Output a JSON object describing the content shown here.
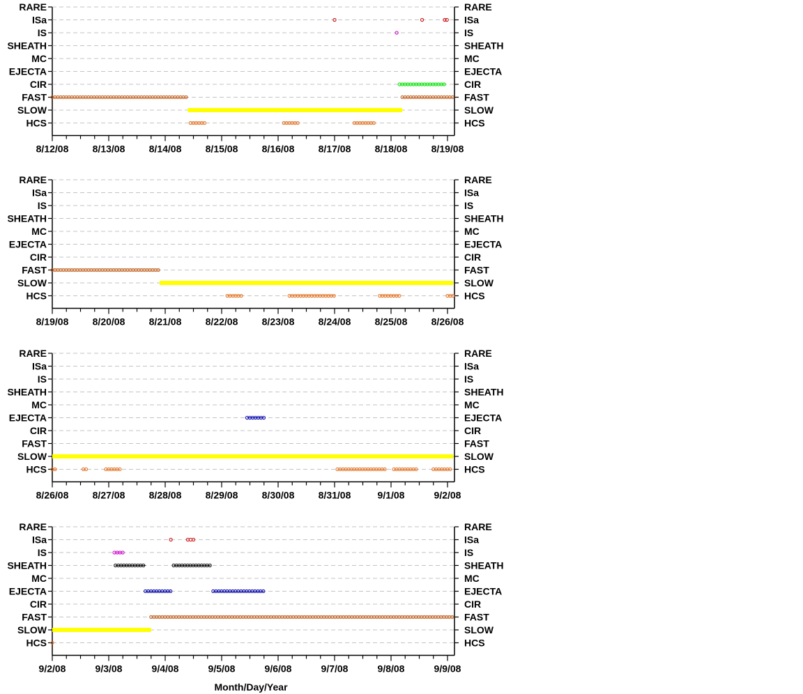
{
  "colors": {
    "gridline": "#b0b0b0",
    "axis": "#000000",
    "slow_fill": "#ffff00",
    "HCS": "#e07020",
    "FAST": "#c06020",
    "CIR": "#00e000",
    "IS": "#cc00cc",
    "ISa": "#cc0000",
    "EJECTA": "#0000aa",
    "SHEATH": "#000000"
  },
  "xlabel": "Month/Day/Year",
  "chart_data": [
    {
      "type": "scatter",
      "categories": [
        "RARE",
        "ISa",
        "IS",
        "SHEATH",
        "MC",
        "EJECTA",
        "CIR",
        "FAST",
        "SLOW",
        "HCS"
      ],
      "x_tick_labels": [
        "8/12/08",
        "8/13/08",
        "8/14/08",
        "8/15/08",
        "8/16/08",
        "8/17/08",
        "8/18/08",
        "8/19/08"
      ],
      "xlim": [
        0,
        7.1
      ],
      "grid": true,
      "series": [
        {
          "category": "ISa",
          "points": [
            5.0,
            6.55,
            6.95,
            6.99
          ]
        },
        {
          "category": "IS",
          "points": [
            6.1
          ]
        },
        {
          "category": "CIR",
          "ranges": [
            [
              6.15,
              6.95
            ]
          ]
        },
        {
          "category": "FAST",
          "ranges": [
            [
              0.0,
              2.4
            ],
            [
              6.2,
              7.1
            ]
          ]
        },
        {
          "category": "SLOW",
          "bar": [
            2.4,
            6.2
          ]
        },
        {
          "category": "HCS",
          "ranges": [
            [
              2.45,
              2.7
            ],
            [
              4.1,
              4.35
            ],
            [
              5.35,
              5.7
            ]
          ]
        }
      ]
    },
    {
      "type": "scatter",
      "categories": [
        "RARE",
        "ISa",
        "IS",
        "SHEATH",
        "MC",
        "EJECTA",
        "CIR",
        "FAST",
        "SLOW",
        "HCS"
      ],
      "x_tick_labels": [
        "8/19/08",
        "8/20/08",
        "8/21/08",
        "8/22/08",
        "8/23/08",
        "8/24/08",
        "8/25/08",
        "8/26/08"
      ],
      "xlim": [
        0,
        7.1
      ],
      "grid": true,
      "series": [
        {
          "category": "FAST",
          "ranges": [
            [
              0.0,
              1.9
            ]
          ]
        },
        {
          "category": "SLOW",
          "bar": [
            1.9,
            7.1
          ]
        },
        {
          "category": "HCS",
          "ranges": [
            [
              3.1,
              3.35
            ],
            [
              4.2,
              5.0
            ],
            [
              5.8,
              6.15
            ],
            [
              7.0,
              7.1
            ]
          ]
        }
      ]
    },
    {
      "type": "scatter",
      "categories": [
        "RARE",
        "ISa",
        "IS",
        "SHEATH",
        "MC",
        "EJECTA",
        "CIR",
        "FAST",
        "SLOW",
        "HCS"
      ],
      "x_tick_labels": [
        "8/26/08",
        "8/27/08",
        "8/28/08",
        "8/29/08",
        "8/30/08",
        "8/31/08",
        "9/1/08",
        "9/2/08"
      ],
      "xlim": [
        0,
        7.1
      ],
      "grid": true,
      "series": [
        {
          "category": "EJECTA",
          "ranges": [
            [
              3.45,
              3.75
            ]
          ]
        },
        {
          "category": "SLOW",
          "bar": [
            0.0,
            7.1
          ]
        },
        {
          "category": "HCS",
          "ranges": [
            [
              0.0,
              0.08
            ],
            [
              0.55,
              0.6
            ],
            [
              0.95,
              1.2
            ],
            [
              5.05,
              5.9
            ],
            [
              6.05,
              6.45
            ],
            [
              6.75,
              7.05
            ]
          ]
        }
      ]
    },
    {
      "type": "scatter",
      "categories": [
        "RARE",
        "ISa",
        "IS",
        "SHEATH",
        "MC",
        "EJECTA",
        "CIR",
        "FAST",
        "SLOW",
        "HCS"
      ],
      "x_tick_labels": [
        "9/2/08",
        "9/3/08",
        "9/4/08",
        "9/5/08",
        "9/6/08",
        "9/7/08",
        "9/8/08",
        "9/9/08"
      ],
      "xlim": [
        0,
        7.1
      ],
      "grid": true,
      "series": [
        {
          "category": "ISa",
          "points": [
            2.1,
            2.4,
            2.45,
            2.5
          ]
        },
        {
          "category": "IS",
          "ranges": [
            [
              1.1,
              1.25
            ]
          ]
        },
        {
          "category": "SHEATH",
          "ranges": [
            [
              1.12,
              1.65
            ],
            [
              2.15,
              2.8
            ]
          ]
        },
        {
          "category": "EJECTA",
          "ranges": [
            [
              1.65,
              2.1
            ],
            [
              2.85,
              3.75
            ]
          ]
        },
        {
          "category": "FAST",
          "ranges": [
            [
              1.75,
              7.1
            ]
          ]
        },
        {
          "category": "SLOW",
          "bar": [
            0.0,
            1.75
          ]
        },
        {
          "category": "HCS",
          "points": [
            0.0
          ]
        }
      ]
    }
  ]
}
